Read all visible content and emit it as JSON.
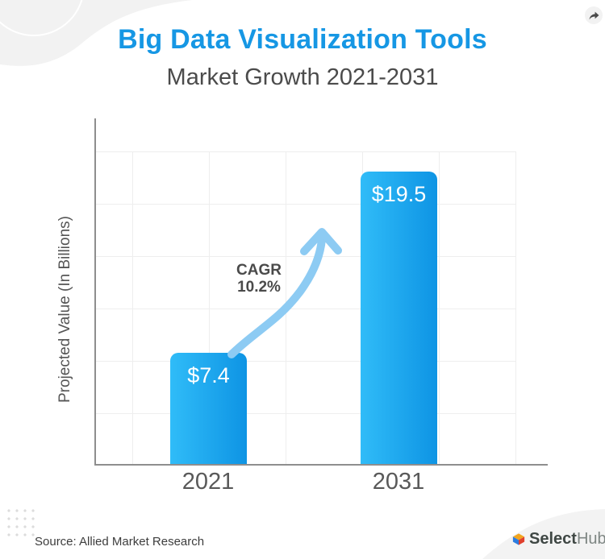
{
  "header": {
    "title": "Big Data Visualization Tools",
    "subtitle": "Market Growth 2021-2031",
    "title_color": "#1697e4",
    "subtitle_color": "#4b4b4b"
  },
  "chart_data": {
    "type": "bar",
    "categories": [
      "2021",
      "2031"
    ],
    "values": [
      7.4,
      19.5
    ],
    "value_labels": [
      "$7.4",
      "$19.5"
    ],
    "unit": "USD billions",
    "title": "Big Data Visualization Tools",
    "subtitle": "Market Growth 2021-2031",
    "xlabel": "",
    "ylabel": "Projected Value (In Billions)",
    "annotation": {
      "line1": "CAGR",
      "line2": "10.2%"
    },
    "ylim": [
      0,
      23
    ],
    "grid": true,
    "legend": false,
    "bar_gradient": [
      "#30bcf8",
      "#0e94e4"
    ],
    "arrow_color": "#8dcbf3",
    "axis_color": "#8e8e8e",
    "grid_color": "#eeeeee"
  },
  "footer": {
    "source": "Source: Allied Market Research",
    "brand": {
      "bold": "Select",
      "light": "Hub"
    }
  }
}
